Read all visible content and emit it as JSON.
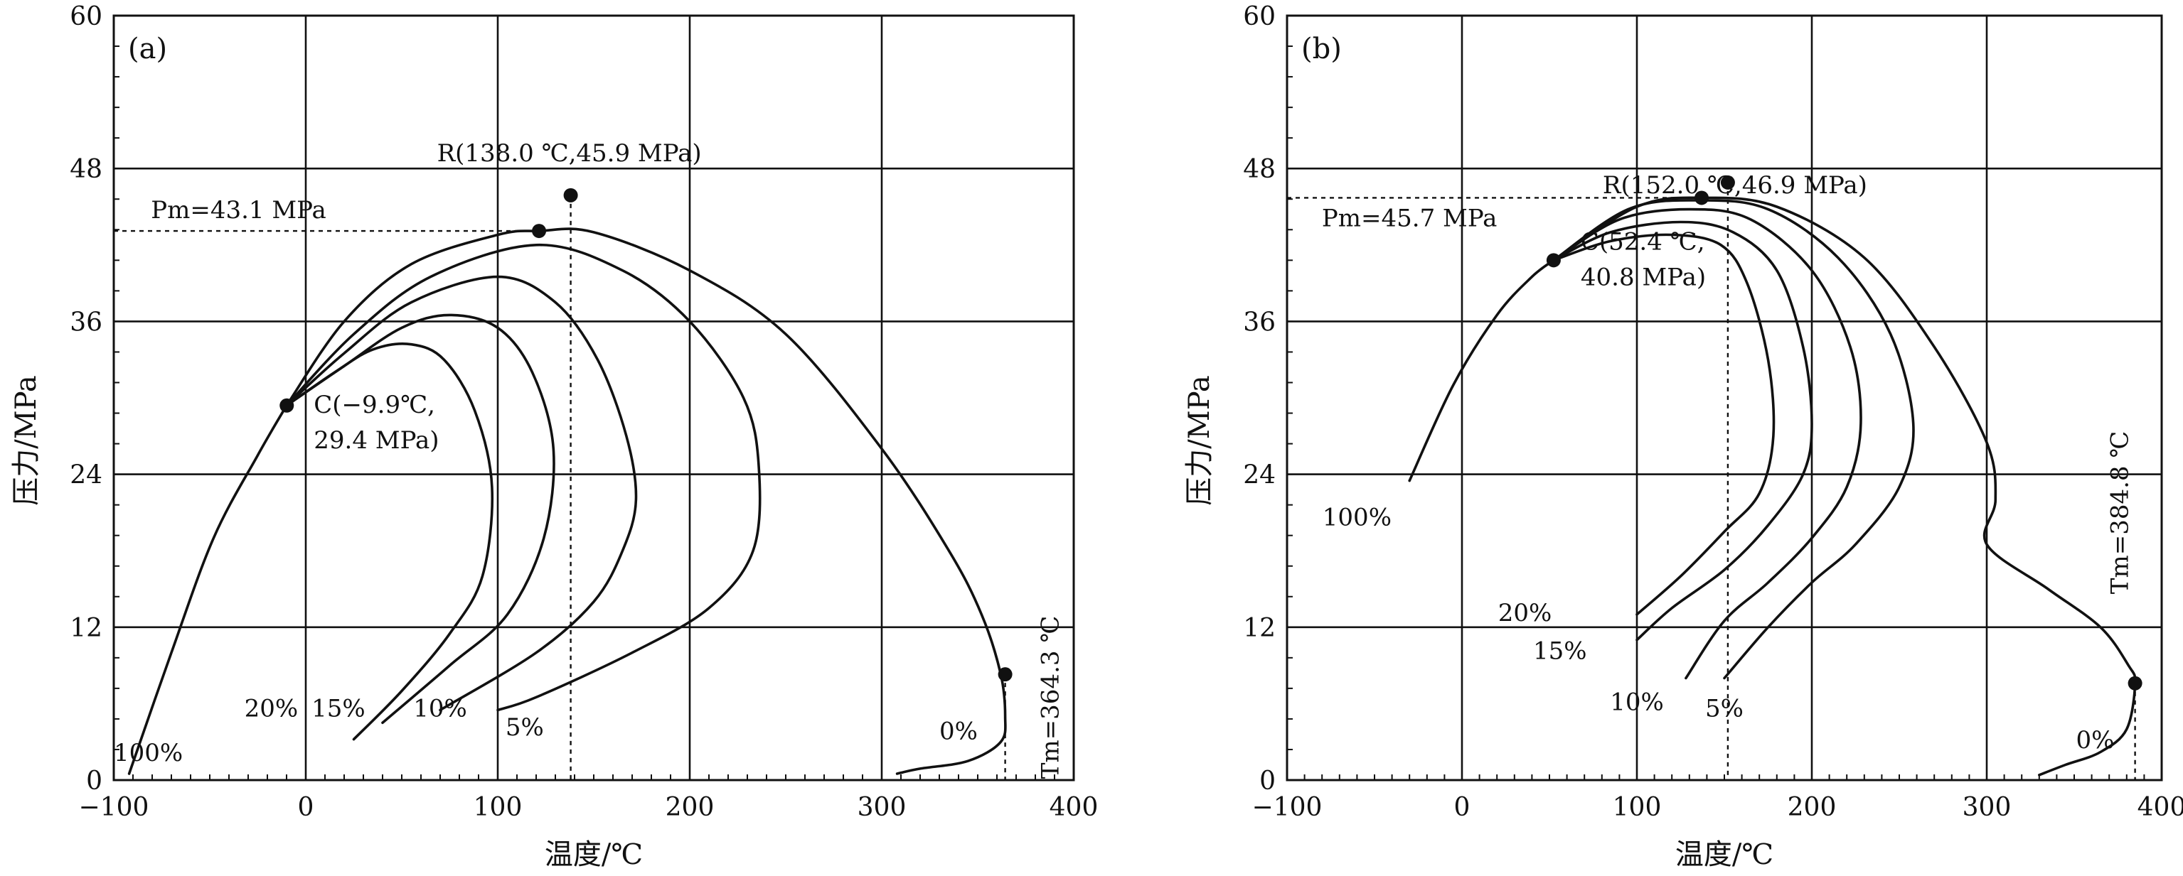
{
  "chart_data": [
    {
      "type": "line",
      "panel_label": "(a)",
      "xlabel": "温度/℃",
      "ylabel": "压力/MPa",
      "xlim": [
        -100,
        400
      ],
      "ylim": [
        0,
        60
      ],
      "xticks": [
        -100,
        0,
        100,
        200,
        300,
        400
      ],
      "yticks": [
        0,
        12,
        24,
        36,
        48,
        60
      ],
      "grid": true,
      "series": [
        {
          "name": "100%",
          "points": [
            [
              -92,
              0.5
            ],
            [
              -70,
              10
            ],
            [
              -48,
              19
            ],
            [
              -25,
              25.5
            ],
            [
              -10,
              29.4
            ]
          ],
          "label_at": [
            -82,
            1.5
          ]
        },
        {
          "name": "20%",
          "points": [
            [
              -10,
              29.4
            ],
            [
              15,
              32
            ],
            [
              35,
              33.8
            ],
            [
              55,
              34.2
            ],
            [
              72,
              33
            ],
            [
              88,
              29
            ],
            [
              97,
              23
            ],
            [
              92,
              16
            ],
            [
              75,
              11.5
            ],
            [
              50,
              7
            ],
            [
              25,
              3.2
            ]
          ],
          "label_at": [
            -18,
            5
          ]
        },
        {
          "name": "15%",
          "points": [
            [
              -10,
              29.4
            ],
            [
              20,
              32.5
            ],
            [
              50,
              35.5
            ],
            [
              75,
              36.5
            ],
            [
              100,
              35.5
            ],
            [
              118,
              32
            ],
            [
              129,
              26
            ],
            [
              124,
              19
            ],
            [
              105,
              13
            ],
            [
              75,
              9
            ],
            [
              40,
              4.5
            ]
          ],
          "label_at": [
            17,
            5
          ]
        },
        {
          "name": "10%",
          "points": [
            [
              -10,
              29.4
            ],
            [
              20,
              33.5
            ],
            [
              55,
              37.5
            ],
            [
              100,
              39.5
            ],
            [
              130,
              37.5
            ],
            [
              152,
              33
            ],
            [
              167,
              27
            ],
            [
              172,
              22
            ],
            [
              165,
              18
            ],
            [
              150,
              14
            ],
            [
              120,
              10
            ],
            [
              70,
              5.5
            ]
          ],
          "label_at": [
            70,
            5
          ]
        },
        {
          "name": "5%",
          "points": [
            [
              -10,
              29.4
            ],
            [
              25,
              35
            ],
            [
              65,
              39.5
            ],
            [
              120,
              42
            ],
            [
              165,
              40
            ],
            [
              200,
              36
            ],
            [
              228,
              30
            ],
            [
              236,
              24.5
            ],
            [
              233,
              18
            ],
            [
              210,
              13.5
            ],
            [
              170,
              10
            ],
            [
              120,
              6.5
            ],
            [
              100,
              5.5
            ]
          ],
          "label_at": [
            114,
            3.5
          ]
        },
        {
          "name": "0%",
          "points": [
            [
              -10,
              29.4
            ],
            [
              20,
              36
            ],
            [
              55,
              40.5
            ],
            [
              100,
              42.8
            ],
            [
              121.5,
              43.1
            ],
            [
              150,
              43
            ],
            [
              200,
              40
            ],
            [
              250,
              35
            ],
            [
              300,
              26
            ],
            [
              335,
              18
            ],
            [
              352,
              13
            ],
            [
              362,
              8.3
            ],
            [
              364.3,
              5
            ],
            [
              362,
              3
            ],
            [
              345,
              1.5
            ],
            [
              320,
              0.9
            ],
            [
              308,
              0.5
            ]
          ],
          "label_at": [
            340,
            3.2
          ]
        }
      ],
      "points": [
        {
          "name": "C",
          "x": -9.9,
          "y": 29.4
        },
        {
          "name": "Pm",
          "x": 121.5,
          "y": 43.1
        },
        {
          "name": "R",
          "x": 138.0,
          "y": 45.9
        },
        {
          "name": "Tm",
          "x": 364.3,
          "y": 8.3
        }
      ],
      "annotations": {
        "pm_text": "Pm=43.1 MPa",
        "pm_value": 43.1,
        "r_text": "R(138.0 ℃,45.9 MPa)",
        "c_line1": "C(−9.9℃,",
        "c_line2": "29.4 MPa)",
        "tm_text": "Tm=364.3 ℃",
        "tm_value": 364.3
      }
    },
    {
      "type": "line",
      "panel_label": "(b)",
      "xlabel": "温度/℃",
      "ylabel": "压力/MPa",
      "xlim": [
        -100,
        400
      ],
      "ylim": [
        0,
        60
      ],
      "xticks": [
        -100,
        0,
        100,
        200,
        300,
        400
      ],
      "yticks": [
        0,
        12,
        24,
        36,
        48,
        60
      ],
      "grid": true,
      "series": [
        {
          "name": "100%",
          "points": [
            [
              -30,
              23.5
            ],
            [
              -5,
              31
            ],
            [
              20,
              36.5
            ],
            [
              40,
              39.5
            ],
            [
              52.4,
              40.8
            ]
          ],
          "label_at": [
            -60,
            20
          ]
        },
        {
          "name": "20%",
          "points": [
            [
              52.4,
              40.8
            ],
            [
              85,
              42.3
            ],
            [
              120,
              42.8
            ],
            [
              148,
              42
            ],
            [
              163,
              39
            ],
            [
              175,
              33
            ],
            [
              178,
              27
            ],
            [
              170,
              22.5
            ],
            [
              150,
              19.5
            ],
            [
              125,
              16
            ],
            [
              100,
              13
            ]
          ],
          "label_at": [
            36,
            12.5
          ]
        },
        {
          "name": "15%",
          "points": [
            [
              52.4,
              40.8
            ],
            [
              85,
              43
            ],
            [
              125,
              43.8
            ],
            [
              155,
              43
            ],
            [
              180,
              40
            ],
            [
              195,
              34
            ],
            [
              200,
              28
            ],
            [
              195,
              24
            ],
            [
              175,
              20
            ],
            [
              150,
              16.5
            ],
            [
              120,
              13.5
            ],
            [
              100,
              11
            ]
          ],
          "label_at": [
            56,
            9.5
          ]
        },
        {
          "name": "10%",
          "points": [
            [
              52.4,
              40.8
            ],
            [
              90,
              44
            ],
            [
              130,
              44.8
            ],
            [
              165,
              44
            ],
            [
              200,
              40
            ],
            [
              222,
              34
            ],
            [
              228,
              28
            ],
            [
              220,
              23
            ],
            [
              200,
              19
            ],
            [
              175,
              15.5
            ],
            [
              150,
              12.5
            ],
            [
              128,
              8
            ]
          ],
          "label_at": [
            100,
            5.5
          ]
        },
        {
          "name": "5%",
          "points": [
            [
              52.4,
              40.8
            ],
            [
              95,
              44.8
            ],
            [
              135,
              45.5
            ],
            [
              175,
              44.8
            ],
            [
              215,
              41
            ],
            [
              245,
              35
            ],
            [
              258,
              28
            ],
            [
              250,
              23
            ],
            [
              225,
              18.5
            ],
            [
              200,
              15.5
            ],
            [
              175,
              12
            ],
            [
              150,
              8
            ]
          ],
          "label_at": [
            150,
            5
          ]
        },
        {
          "name": "0%",
          "points": [
            [
              52.4,
              40.8
            ],
            [
              100,
              45
            ],
            [
              137,
              45.7
            ],
            [
              180,
              45
            ],
            [
              230,
              41
            ],
            [
              270,
              34
            ],
            [
              300,
              26.5
            ],
            [
              305,
              22
            ],
            [
              300,
              18.5
            ],
            [
              335,
              15
            ],
            [
              365,
              12
            ],
            [
              381,
              9
            ],
            [
              384.8,
              7.6
            ],
            [
              380,
              4
            ],
            [
              365,
              2.2
            ],
            [
              345,
              1.2
            ],
            [
              330,
              0.4
            ]
          ],
          "label_at": [
            362,
            2.5
          ]
        }
      ],
      "points": [
        {
          "name": "C",
          "x": 52.4,
          "y": 40.8
        },
        {
          "name": "Pm",
          "x": 137,
          "y": 45.7
        },
        {
          "name": "R",
          "x": 152.0,
          "y": 46.9
        },
        {
          "name": "Tm",
          "x": 384.8,
          "y": 7.6
        }
      ],
      "annotations": {
        "pm_text": "Pm=45.7 MPa",
        "pm_value": 45.7,
        "r_text": "R(152.0 ℃,46.9 MPa)",
        "c_line1": "C(52.4 ℃,",
        "c_line2": "40.8 MPa)",
        "tm_text": "Tm=384.8 ℃",
        "tm_value": 384.8
      }
    }
  ]
}
